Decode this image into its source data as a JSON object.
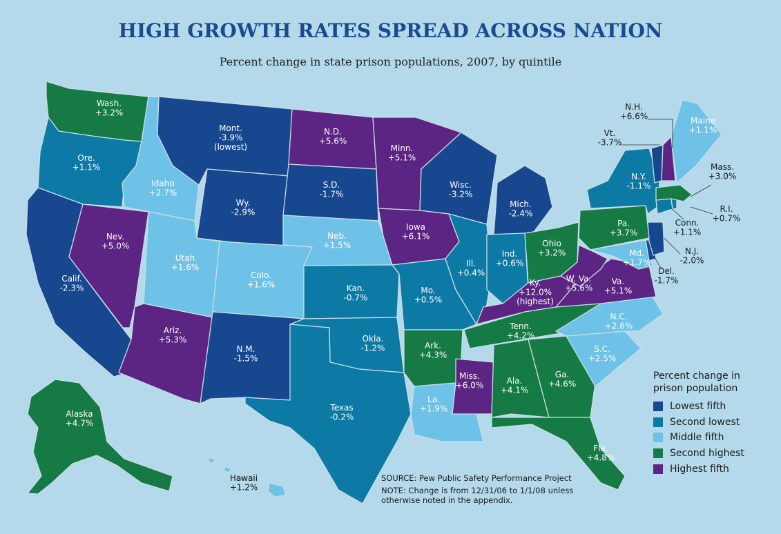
{
  "title": "HIGH GROWTH RATES SPREAD ACROSS NATION",
  "subtitle": "Percent change in state prison populations, 2007, by quintile",
  "colors": {
    "background": "#b3d9ea",
    "lowest_fifth": "#17488f",
    "second_lowest": "#0d7aa6",
    "middle_fifth": "#6ec2e8",
    "second_highest": "#167a45",
    "highest_fifth": "#5c2483"
  },
  "legend": {
    "title": "Percent change in prison population",
    "items": [
      {
        "label": "Lowest fifth",
        "color": "#17488f"
      },
      {
        "label": "Second lowest",
        "color": "#0d7aa6"
      },
      {
        "label": "Middle fifth",
        "color": "#6ec2e8"
      },
      {
        "label": "Second highest",
        "color": "#167a45"
      },
      {
        "label": "Highest fifth",
        "color": "#5c2483"
      }
    ]
  },
  "source": "SOURCE: Pew Public Safety Performance Project",
  "note": "NOTE: Change is from 12/31/06 to 1/1/08 unless otherwise noted in the appendix.",
  "states": [
    {
      "id": "WA",
      "name": "Wash.",
      "value": "+3.2%",
      "quintile": "second_highest"
    },
    {
      "id": "OR",
      "name": "Ore.",
      "value": "+1.1%",
      "quintile": "second_lowest"
    },
    {
      "id": "CA",
      "name": "Calif.",
      "value": "-2.3%",
      "quintile": "lowest_fifth"
    },
    {
      "id": "NV",
      "name": "Nev.",
      "value": "+5.0%",
      "quintile": "highest_fifth"
    },
    {
      "id": "ID",
      "name": "Idaho",
      "value": "+2.7%",
      "quintile": "middle_fifth"
    },
    {
      "id": "MT",
      "name": "Mont.",
      "value": "-3.9%",
      "note": "(lowest)",
      "quintile": "lowest_fifth"
    },
    {
      "id": "WY",
      "name": "Wy.",
      "value": "-2.9%",
      "quintile": "lowest_fifth"
    },
    {
      "id": "UT",
      "name": "Utah",
      "value": "+1.6%",
      "quintile": "middle_fifth"
    },
    {
      "id": "AZ",
      "name": "Ariz.",
      "value": "+5.3%",
      "quintile": "highest_fifth"
    },
    {
      "id": "CO",
      "name": "Colo.",
      "value": "+1.6%",
      "quintile": "middle_fifth"
    },
    {
      "id": "NM",
      "name": "N.M.",
      "value": "-1.5%",
      "quintile": "lowest_fifth"
    },
    {
      "id": "ND",
      "name": "N.D.",
      "value": "+5.6%",
      "quintile": "highest_fifth"
    },
    {
      "id": "SD",
      "name": "S.D.",
      "value": "-1.7%",
      "quintile": "lowest_fifth"
    },
    {
      "id": "NE",
      "name": "Neb.",
      "value": "+1.5%",
      "quintile": "middle_fifth"
    },
    {
      "id": "KS",
      "name": "Kan.",
      "value": "-0.7%",
      "quintile": "second_lowest"
    },
    {
      "id": "OK",
      "name": "Okla.",
      "value": "-1.2%",
      "quintile": "second_lowest"
    },
    {
      "id": "TX",
      "name": "Texas",
      "value": "-0.2%",
      "quintile": "second_lowest"
    },
    {
      "id": "MN",
      "name": "Minn.",
      "value": "+5.1%",
      "quintile": "highest_fifth"
    },
    {
      "id": "IA",
      "name": "Iowa",
      "value": "+6.1%",
      "quintile": "highest_fifth"
    },
    {
      "id": "MO",
      "name": "Mo.",
      "value": "+0.5%",
      "quintile": "second_lowest"
    },
    {
      "id": "AR",
      "name": "Ark.",
      "value": "+4.3%",
      "quintile": "second_highest"
    },
    {
      "id": "LA",
      "name": "La.",
      "value": "+1.9%",
      "quintile": "middle_fifth"
    },
    {
      "id": "WI",
      "name": "Wisc.",
      "value": "-3.2%",
      "quintile": "lowest_fifth"
    },
    {
      "id": "IL",
      "name": "Ill.",
      "value": "+0.4%",
      "quintile": "second_lowest"
    },
    {
      "id": "MI",
      "name": "Mich.",
      "value": "-2.4%",
      "quintile": "lowest_fifth"
    },
    {
      "id": "IN",
      "name": "Ind.",
      "value": "+0.6%",
      "quintile": "second_lowest"
    },
    {
      "id": "OH",
      "name": "Ohio",
      "value": "+3.2%",
      "quintile": "second_highest"
    },
    {
      "id": "KY",
      "name": "Ky.",
      "value": "+12.0%",
      "note": "(highest)",
      "quintile": "highest_fifth"
    },
    {
      "id": "TN",
      "name": "Tenn.",
      "value": "+4.2%",
      "quintile": "second_highest"
    },
    {
      "id": "MS",
      "name": "Miss.",
      "value": "+6.0%",
      "quintile": "highest_fifth"
    },
    {
      "id": "AL",
      "name": "Ala.",
      "value": "+4.1%",
      "quintile": "second_highest"
    },
    {
      "id": "GA",
      "name": "Ga.",
      "value": "+4.6%",
      "quintile": "second_highest"
    },
    {
      "id": "FL",
      "name": "Fla.",
      "value": "+4.8%",
      "quintile": "second_highest"
    },
    {
      "id": "SC",
      "name": "S.C.",
      "value": "+2.5%",
      "quintile": "middle_fifth"
    },
    {
      "id": "NC",
      "name": "N.C.",
      "value": "+2.6%",
      "quintile": "middle_fifth"
    },
    {
      "id": "VA",
      "name": "Va.",
      "value": "+5.1%",
      "quintile": "highest_fifth"
    },
    {
      "id": "WV",
      "name": "W. Va.",
      "value": "+5.6%",
      "quintile": "highest_fifth"
    },
    {
      "id": "MD",
      "name": "Md.",
      "value": "+1.7%",
      "quintile": "middle_fifth"
    },
    {
      "id": "DE",
      "name": "Del.",
      "value": "-1.7%",
      "quintile": "lowest_fifth"
    },
    {
      "id": "NJ",
      "name": "N.J.",
      "value": "-2.0%",
      "quintile": "lowest_fifth"
    },
    {
      "id": "PA",
      "name": "Pa.",
      "value": "+3.7%",
      "quintile": "second_highest"
    },
    {
      "id": "NY",
      "name": "N.Y.",
      "value": "-1.1%",
      "quintile": "second_lowest"
    },
    {
      "id": "CT",
      "name": "Conn.",
      "value": "+1.1%",
      "quintile": "second_lowest"
    },
    {
      "id": "RI",
      "name": "R.I.",
      "value": "+0.7%",
      "quintile": "second_lowest"
    },
    {
      "id": "MA",
      "name": "Mass.",
      "value": "+3.0%",
      "quintile": "second_highest"
    },
    {
      "id": "VT",
      "name": "Vt.",
      "value": "-3.7%",
      "quintile": "lowest_fifth"
    },
    {
      "id": "NH",
      "name": "N.H.",
      "value": "+6.6%",
      "quintile": "highest_fifth"
    },
    {
      "id": "ME",
      "name": "Maine",
      "value": "+1.1%",
      "quintile": "middle_fifth"
    },
    {
      "id": "AK",
      "name": "Alaska",
      "value": "+4.7%",
      "quintile": "second_highest"
    },
    {
      "id": "HI",
      "name": "Hawaii",
      "value": "+1.2%",
      "quintile": "middle_fifth"
    }
  ]
}
